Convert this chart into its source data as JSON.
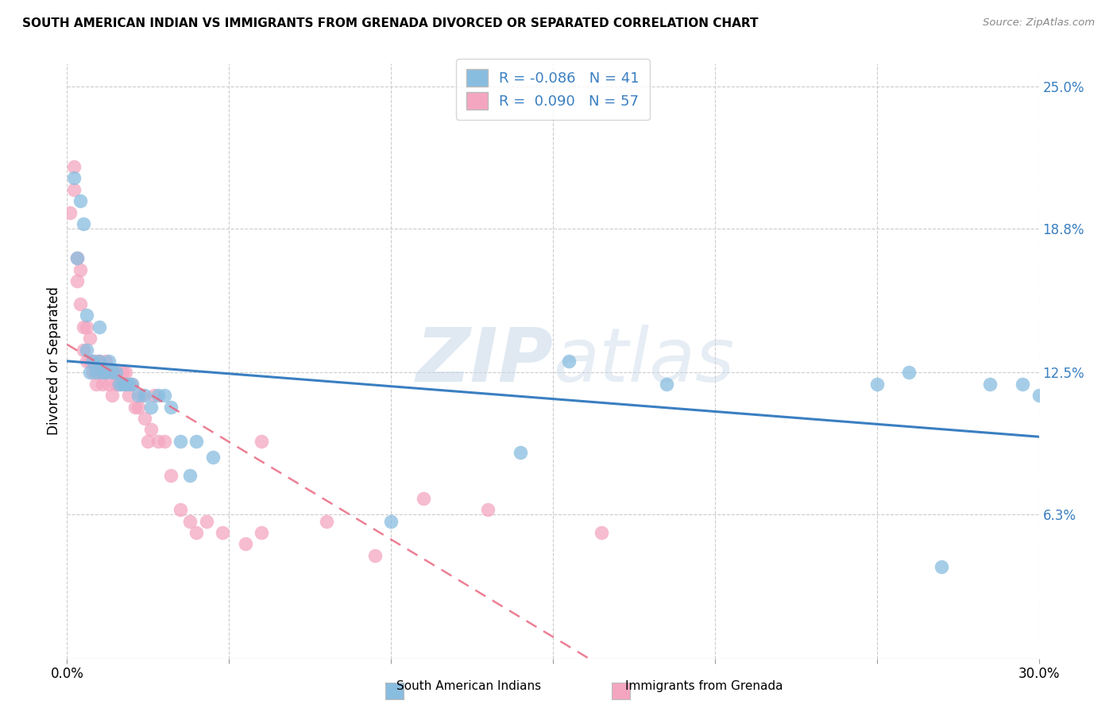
{
  "title": "SOUTH AMERICAN INDIAN VS IMMIGRANTS FROM GRENADA DIVORCED OR SEPARATED CORRELATION CHART",
  "source": "Source: ZipAtlas.com",
  "ylabel": "Divorced or Separated",
  "x_min": 0.0,
  "x_max": 0.3,
  "y_min": 0.0,
  "y_max": 0.26,
  "x_ticks": [
    0.0,
    0.05,
    0.1,
    0.15,
    0.2,
    0.25,
    0.3
  ],
  "y_tick_right": [
    0.063,
    0.125,
    0.188,
    0.25
  ],
  "y_tick_right_labels": [
    "6.3%",
    "12.5%",
    "18.8%",
    "25.0%"
  ],
  "color_blue": "#89bde0",
  "color_pink": "#f4a6c0",
  "color_blue_line": "#3a7fc1",
  "color_pink_line": "#e8607a",
  "label_blue": "South American Indians",
  "label_pink": "Immigrants from Grenada",
  "watermark_zip": "ZIP",
  "watermark_atlas": "atlas",
  "blue_r": "-0.086",
  "blue_n": "41",
  "pink_r": "0.090",
  "pink_n": "57",
  "blue_scatter_x": [
    0.002,
    0.003,
    0.004,
    0.005,
    0.006,
    0.006,
    0.007,
    0.008,
    0.009,
    0.01,
    0.01,
    0.011,
    0.012,
    0.013,
    0.014,
    0.015,
    0.016,
    0.017,
    0.018,
    0.019,
    0.02,
    0.022,
    0.024,
    0.026,
    0.028,
    0.03,
    0.032,
    0.035,
    0.038,
    0.04,
    0.045,
    0.1,
    0.14,
    0.155,
    0.185,
    0.25,
    0.26,
    0.27,
    0.285,
    0.295,
    0.3
  ],
  "blue_scatter_y": [
    0.21,
    0.175,
    0.2,
    0.19,
    0.135,
    0.15,
    0.125,
    0.13,
    0.125,
    0.13,
    0.145,
    0.125,
    0.125,
    0.13,
    0.125,
    0.125,
    0.12,
    0.12,
    0.12,
    0.12,
    0.12,
    0.115,
    0.115,
    0.11,
    0.115,
    0.115,
    0.11,
    0.095,
    0.08,
    0.095,
    0.088,
    0.06,
    0.09,
    0.13,
    0.12,
    0.12,
    0.125,
    0.04,
    0.12,
    0.12,
    0.115
  ],
  "pink_scatter_x": [
    0.001,
    0.002,
    0.002,
    0.003,
    0.003,
    0.004,
    0.004,
    0.005,
    0.005,
    0.006,
    0.006,
    0.007,
    0.007,
    0.008,
    0.008,
    0.009,
    0.009,
    0.01,
    0.01,
    0.011,
    0.011,
    0.012,
    0.012,
    0.013,
    0.013,
    0.014,
    0.015,
    0.015,
    0.016,
    0.017,
    0.018,
    0.018,
    0.019,
    0.02,
    0.021,
    0.022,
    0.023,
    0.024,
    0.025,
    0.026,
    0.027,
    0.028,
    0.03,
    0.032,
    0.035,
    0.038,
    0.04,
    0.043,
    0.048,
    0.055,
    0.06,
    0.08,
    0.095,
    0.11,
    0.13,
    0.165,
    0.06
  ],
  "pink_scatter_y": [
    0.195,
    0.215,
    0.205,
    0.165,
    0.175,
    0.155,
    0.17,
    0.135,
    0.145,
    0.145,
    0.13,
    0.13,
    0.14,
    0.13,
    0.125,
    0.13,
    0.12,
    0.125,
    0.13,
    0.125,
    0.12,
    0.125,
    0.13,
    0.12,
    0.125,
    0.115,
    0.12,
    0.125,
    0.12,
    0.125,
    0.12,
    0.125,
    0.115,
    0.12,
    0.11,
    0.11,
    0.115,
    0.105,
    0.095,
    0.1,
    0.115,
    0.095,
    0.095,
    0.08,
    0.065,
    0.06,
    0.055,
    0.06,
    0.055,
    0.05,
    0.055,
    0.06,
    0.045,
    0.07,
    0.065,
    0.055,
    0.095
  ]
}
